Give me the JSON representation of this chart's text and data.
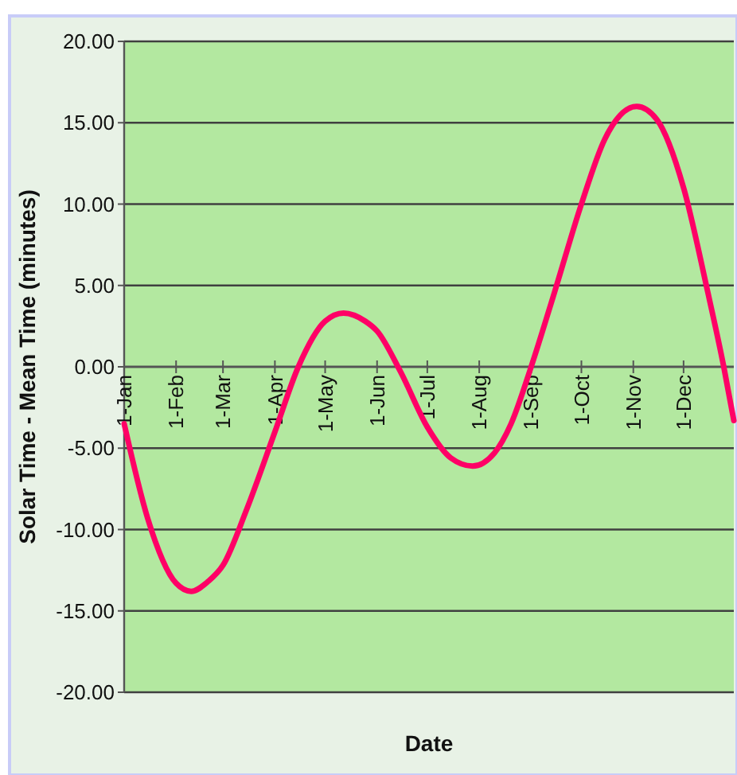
{
  "chart_data": {
    "type": "line",
    "xlabel": "Date",
    "ylabel": "Solar Time - Mean Time (minutes)",
    "x": [
      "--01-01",
      "--01-15",
      "--02-01",
      "--02-10",
      "--02-20",
      "--03-01",
      "--03-15",
      "--04-01",
      "--04-15",
      "--05-01",
      "--05-12",
      "--05-25",
      "--06-01",
      "--06-15",
      "--07-01",
      "--07-15",
      "--07-28",
      "--08-10",
      "--08-20",
      "--09-01",
      "--09-15",
      "--10-01",
      "--10-15",
      "--11-03",
      "--11-15",
      "--12-01",
      "--12-15",
      "--12-25",
      "--12-31"
    ],
    "series": [
      {
        "color": "#ff0066",
        "values": [
          -3.5,
          -9.3,
          -13.3,
          -13.8,
          -13.2,
          -12.2,
          -8.8,
          -4.0,
          0,
          2.8,
          3.3,
          2.8,
          2.2,
          -0.3,
          -3.7,
          -5.6,
          -6.1,
          -5.3,
          -3.5,
          0,
          4.6,
          10,
          14,
          16,
          15.2,
          11,
          4.8,
          0,
          -3.3
        ]
      }
    ],
    "xlim": [
      "--01-01",
      "--12-31"
    ],
    "xticks": [
      {
        "value": "--01-01",
        "label": "1-Jan"
      },
      {
        "value": "--02-01",
        "label": "1-Feb"
      },
      {
        "value": "--03-01",
        "label": "1-Mar"
      },
      {
        "value": "--04-01",
        "label": "1-Apr"
      },
      {
        "value": "--05-01",
        "label": "1-May"
      },
      {
        "value": "--06-01",
        "label": "1-Jun"
      },
      {
        "value": "--07-01",
        "label": "1-Jul"
      },
      {
        "value": "--08-01",
        "label": "1-Aug"
      },
      {
        "value": "--09-01",
        "label": "1-Sep"
      },
      {
        "value": "--10-01",
        "label": "1-Oct"
      },
      {
        "value": "--11-01",
        "label": "1-Nov"
      },
      {
        "value": "--12-01",
        "label": "1-Dec"
      }
    ],
    "ylim": [
      -20,
      20
    ],
    "yticks": [
      {
        "value": -20,
        "label": "-20.00"
      },
      {
        "value": -15,
        "label": "-15.00"
      },
      {
        "value": -10,
        "label": "-10.00"
      },
      {
        "value": -5,
        "label": "-5.00"
      },
      {
        "value": 0,
        "label": "0.00"
      },
      {
        "value": 5,
        "label": "5.00"
      },
      {
        "value": 10,
        "label": "10.00"
      },
      {
        "value": 15,
        "label": "15.00"
      },
      {
        "value": 20,
        "label": "20.00"
      }
    ],
    "grid": "y",
    "marker": "none",
    "line_style": "solid"
  }
}
